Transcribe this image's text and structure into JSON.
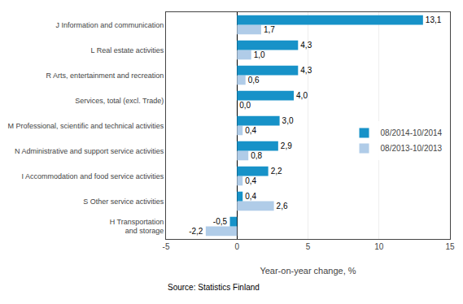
{
  "chart_data": {
    "type": "bar",
    "orientation": "horizontal",
    "categories": [
      "H Transportation\nand storage",
      "S Other service activities",
      "I Accommodation and food service activities",
      "N Administrative and support service activities",
      "M Professional, scientific and technical activities",
      "Services, total (excl. Trade)",
      "R Arts, entertainment and recreation",
      "L Real estate activities",
      "J Information and communication"
    ],
    "series": [
      {
        "name": "08/2014-10/2014",
        "color": "#1792c8",
        "values": [
          -0.5,
          0.4,
          2.2,
          2.9,
          3.0,
          4.0,
          4.3,
          4.3,
          13.1
        ],
        "value_labels": [
          "-0,5",
          "0,4",
          "2,2",
          "2,9",
          "3,0",
          "4,0",
          "4,3",
          "4,3",
          "13,1"
        ]
      },
      {
        "name": "08/2013-10/2013",
        "color": "#b0cce8",
        "values": [
          -2.2,
          2.6,
          0.4,
          0.8,
          0.4,
          0.0,
          0.6,
          1.0,
          1.7
        ],
        "value_labels": [
          "-2,2",
          "2,6",
          "0,4",
          "0,8",
          "0,4",
          "0,0",
          "0,6",
          "1,0",
          "1,7"
        ]
      }
    ],
    "xlim": [
      -5,
      15
    ],
    "xticks": [
      -5,
      0,
      5,
      10,
      15
    ],
    "xlabel": "Year-on-year change, %",
    "annotations": [
      "Source: Statistics Finland"
    ],
    "grid": true,
    "legend": "right",
    "data_labels": true
  }
}
